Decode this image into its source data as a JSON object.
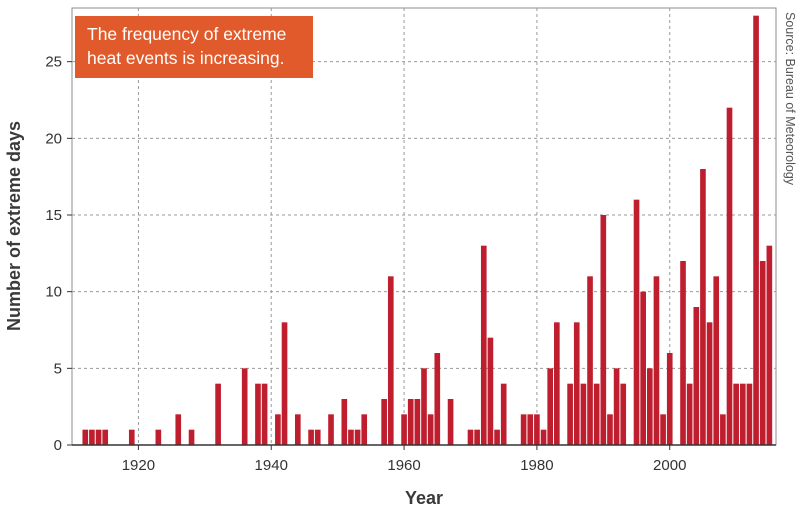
{
  "colors": {
    "bar": "#be1e2d",
    "callout": "#e05a2b",
    "grid": "#9a9a9a"
  },
  "annotation": {
    "text": "The frequency of extreme heat events is increasing."
  },
  "source": "Source: Bureau of Meteorology",
  "chart_data": {
    "type": "bar",
    "title": "",
    "xlabel": "Year",
    "ylabel": "Number of extreme days",
    "xlim": [
      1910,
      2016
    ],
    "ylim": [
      0,
      28.5
    ],
    "x_ticks": [
      1920,
      1940,
      1960,
      1980,
      2000
    ],
    "y_ticks": [
      0,
      5,
      10,
      15,
      20,
      25
    ],
    "grid": true,
    "series": [
      {
        "name": "Number of extreme days",
        "x": [
          1912,
          1913,
          1914,
          1915,
          1919,
          1923,
          1926,
          1928,
          1932,
          1936,
          1938,
          1939,
          1941,
          1942,
          1944,
          1946,
          1947,
          1949,
          1951,
          1952,
          1953,
          1954,
          1957,
          1958,
          1960,
          1961,
          1962,
          1963,
          1964,
          1965,
          1967,
          1970,
          1971,
          1972,
          1973,
          1974,
          1975,
          1978,
          1979,
          1980,
          1981,
          1982,
          1983,
          1985,
          1986,
          1987,
          1988,
          1989,
          1990,
          1991,
          1992,
          1993,
          1995,
          1996,
          1997,
          1998,
          1999,
          2000,
          2002,
          2003,
          2004,
          2005,
          2006,
          2007,
          2008,
          2009,
          2010,
          2011,
          2012,
          2013,
          2014,
          2015
        ],
        "values": [
          1,
          1,
          1,
          1,
          1,
          1,
          2,
          1,
          4,
          5,
          4,
          4,
          2,
          8,
          2,
          1,
          1,
          2,
          3,
          1,
          1,
          2,
          3,
          11,
          2,
          3,
          3,
          5,
          2,
          6,
          3,
          1,
          1,
          13,
          7,
          1,
          4,
          2,
          2,
          2,
          1,
          5,
          8,
          4,
          8,
          4,
          11,
          4,
          15,
          2,
          5,
          4,
          16,
          10,
          5,
          11,
          2,
          6,
          12,
          4,
          9,
          18,
          8,
          11,
          2,
          22,
          4,
          4,
          4,
          28,
          12,
          13
        ]
      }
    ]
  }
}
